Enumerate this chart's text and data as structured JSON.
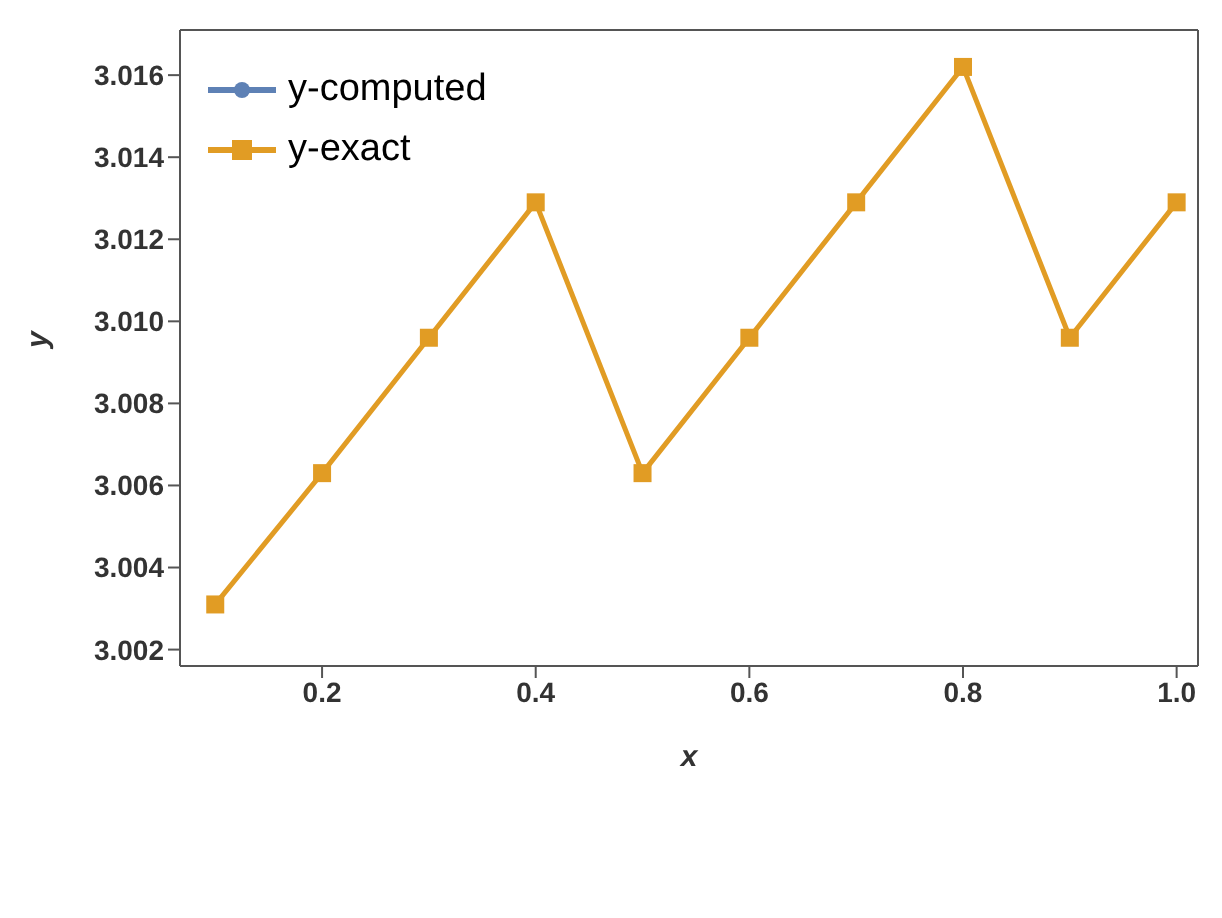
{
  "chart_data": {
    "type": "line",
    "xlabel": "x",
    "ylabel": "y",
    "x": [
      0.1,
      0.2,
      0.3,
      0.4,
      0.5,
      0.6,
      0.7,
      0.8,
      0.9,
      1.0
    ],
    "series": [
      {
        "name": "y-computed",
        "color": "#5e81b5",
        "marker": "circle",
        "values": [
          null,
          null,
          null,
          null,
          null,
          null,
          null,
          null,
          null,
          null
        ]
      },
      {
        "name": "y-exact",
        "color": "#e19c24",
        "marker": "square",
        "values": [
          3.0031,
          3.0063,
          3.0096,
          3.0129,
          3.0063,
          3.0096,
          3.0129,
          3.0162,
          3.0096,
          3.0129
        ]
      }
    ],
    "xlim": [
      0.067,
      1.02
    ],
    "xticks": [
      0.2,
      0.4,
      0.6,
      0.8,
      {
        "value": 1,
        "label": "1.0"
      }
    ],
    "ylim": [
      3.0016,
      3.0171
    ],
    "yticks": [
      3.002,
      3.004,
      3.006,
      3.008,
      {
        "value": 3.01,
        "label": "3.010"
      },
      3.012,
      3.014,
      3.016
    ],
    "grid": false,
    "legend": "top left",
    "line_style": "solid"
  }
}
